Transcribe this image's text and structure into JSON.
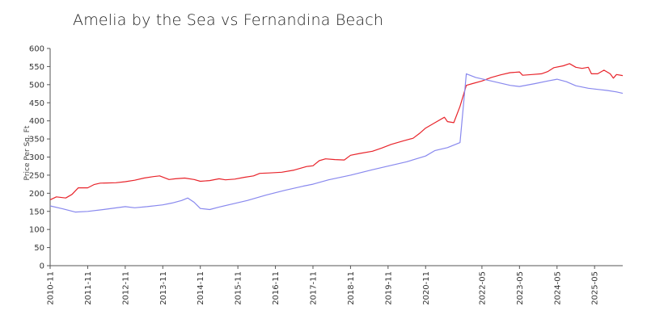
{
  "chart_data": {
    "type": "line",
    "title": "Amelia by  the Sea vs Fernandina Beach",
    "xlabel": "",
    "ylabel": "Price Per Sq. Ft",
    "ylim": [
      0,
      600
    ],
    "yticks": [
      0,
      50,
      100,
      150,
      200,
      250,
      300,
      350,
      400,
      450,
      500,
      550,
      600
    ],
    "xlim": [
      "2010-11",
      "2026-02"
    ],
    "xticks": [
      "2010-11",
      "2011-11",
      "2012-11",
      "2013-11",
      "2014-11",
      "2015-11",
      "2016-11",
      "2017-11",
      "2018-11",
      "2019-11",
      "2020-11",
      "2022-05",
      "2023-05",
      "2024-05",
      "2025-05"
    ],
    "grid": false,
    "legend": "none",
    "series": [
      {
        "color": "#e8232a",
        "points": [
          [
            "2010-11",
            182
          ],
          [
            "2011-01",
            190
          ],
          [
            "2011-04",
            187
          ],
          [
            "2011-06",
            197
          ],
          [
            "2011-08",
            215
          ],
          [
            "2011-11",
            215
          ],
          [
            "2012-01",
            224
          ],
          [
            "2012-03",
            228
          ],
          [
            "2012-08",
            229
          ],
          [
            "2012-11",
            232
          ],
          [
            "2013-02",
            236
          ],
          [
            "2013-05",
            242
          ],
          [
            "2013-08",
            246
          ],
          [
            "2013-10",
            248
          ],
          [
            "2014-01",
            238
          ],
          [
            "2014-03",
            240
          ],
          [
            "2014-06",
            242
          ],
          [
            "2014-09",
            238
          ],
          [
            "2014-11",
            233
          ],
          [
            "2015-02",
            235
          ],
          [
            "2015-05",
            240
          ],
          [
            "2015-07",
            237
          ],
          [
            "2015-10",
            239
          ],
          [
            "2016-01",
            244
          ],
          [
            "2016-04",
            248
          ],
          [
            "2016-06",
            255
          ],
          [
            "2016-09",
            256
          ],
          [
            "2017-01",
            258
          ],
          [
            "2017-05",
            264
          ],
          [
            "2017-09",
            274
          ],
          [
            "2017-11",
            276
          ],
          [
            "2018-01",
            290
          ],
          [
            "2018-03",
            295
          ],
          [
            "2018-06",
            293
          ],
          [
            "2018-09",
            292
          ],
          [
            "2018-11",
            305
          ],
          [
            "2019-02",
            310
          ],
          [
            "2019-06",
            316
          ],
          [
            "2019-09",
            325
          ],
          [
            "2019-12",
            335
          ],
          [
            "2020-04",
            345
          ],
          [
            "2020-07",
            352
          ],
          [
            "2020-09",
            365
          ],
          [
            "2020-11",
            380
          ],
          [
            "2021-02",
            395
          ],
          [
            "2021-05",
            410
          ],
          [
            "2021-06",
            398
          ],
          [
            "2021-08",
            395
          ],
          [
            "2021-10",
            440
          ],
          [
            "2021-12",
            498
          ],
          [
            "2022-02",
            503
          ],
          [
            "2022-05",
            510
          ],
          [
            "2022-08",
            520
          ],
          [
            "2022-11",
            527
          ],
          [
            "2023-02",
            533
          ],
          [
            "2023-05",
            535
          ],
          [
            "2023-06",
            526
          ],
          [
            "2023-09",
            528
          ],
          [
            "2023-12",
            530
          ],
          [
            "2024-02",
            536
          ],
          [
            "2024-04",
            547
          ],
          [
            "2024-07",
            552
          ],
          [
            "2024-09",
            558
          ],
          [
            "2024-11",
            548
          ],
          [
            "2025-01",
            545
          ],
          [
            "2025-03",
            548
          ],
          [
            "2025-04",
            530
          ],
          [
            "2025-06",
            530
          ],
          [
            "2025-08",
            540
          ],
          [
            "2025-10",
            530
          ],
          [
            "2025-11",
            518
          ],
          [
            "2025-12",
            528
          ],
          [
            "2026-02",
            525
          ]
        ]
      },
      {
        "color": "#8888ee",
        "points": [
          [
            "2010-11",
            165
          ],
          [
            "2011-03",
            157
          ],
          [
            "2011-07",
            148
          ],
          [
            "2011-11",
            150
          ],
          [
            "2012-04",
            155
          ],
          [
            "2012-11",
            163
          ],
          [
            "2013-02",
            160
          ],
          [
            "2013-06",
            163
          ],
          [
            "2013-11",
            168
          ],
          [
            "2014-02",
            173
          ],
          [
            "2014-05",
            180
          ],
          [
            "2014-07",
            187
          ],
          [
            "2014-09",
            175
          ],
          [
            "2014-11",
            158
          ],
          [
            "2015-02",
            155
          ],
          [
            "2015-05",
            162
          ],
          [
            "2015-09",
            170
          ],
          [
            "2016-02",
            180
          ],
          [
            "2016-08",
            195
          ],
          [
            "2017-02",
            208
          ],
          [
            "2017-08",
            220
          ],
          [
            "2017-11",
            225
          ],
          [
            "2018-04",
            237
          ],
          [
            "2018-11",
            250
          ],
          [
            "2019-06",
            265
          ],
          [
            "2019-11",
            275
          ],
          [
            "2020-05",
            287
          ],
          [
            "2020-11",
            303
          ],
          [
            "2021-02",
            318
          ],
          [
            "2021-06",
            326
          ],
          [
            "2021-10",
            340
          ],
          [
            "2021-12",
            530
          ],
          [
            "2022-03",
            520
          ],
          [
            "2022-08",
            510
          ],
          [
            "2023-02",
            498
          ],
          [
            "2023-05",
            495
          ],
          [
            "2023-10",
            503
          ],
          [
            "2024-02",
            510
          ],
          [
            "2024-05",
            515
          ],
          [
            "2024-08",
            508
          ],
          [
            "2024-11",
            497
          ],
          [
            "2025-03",
            490
          ],
          [
            "2025-06",
            487
          ],
          [
            "2025-09",
            484
          ],
          [
            "2025-12",
            480
          ],
          [
            "2026-02",
            476
          ]
        ]
      }
    ]
  }
}
